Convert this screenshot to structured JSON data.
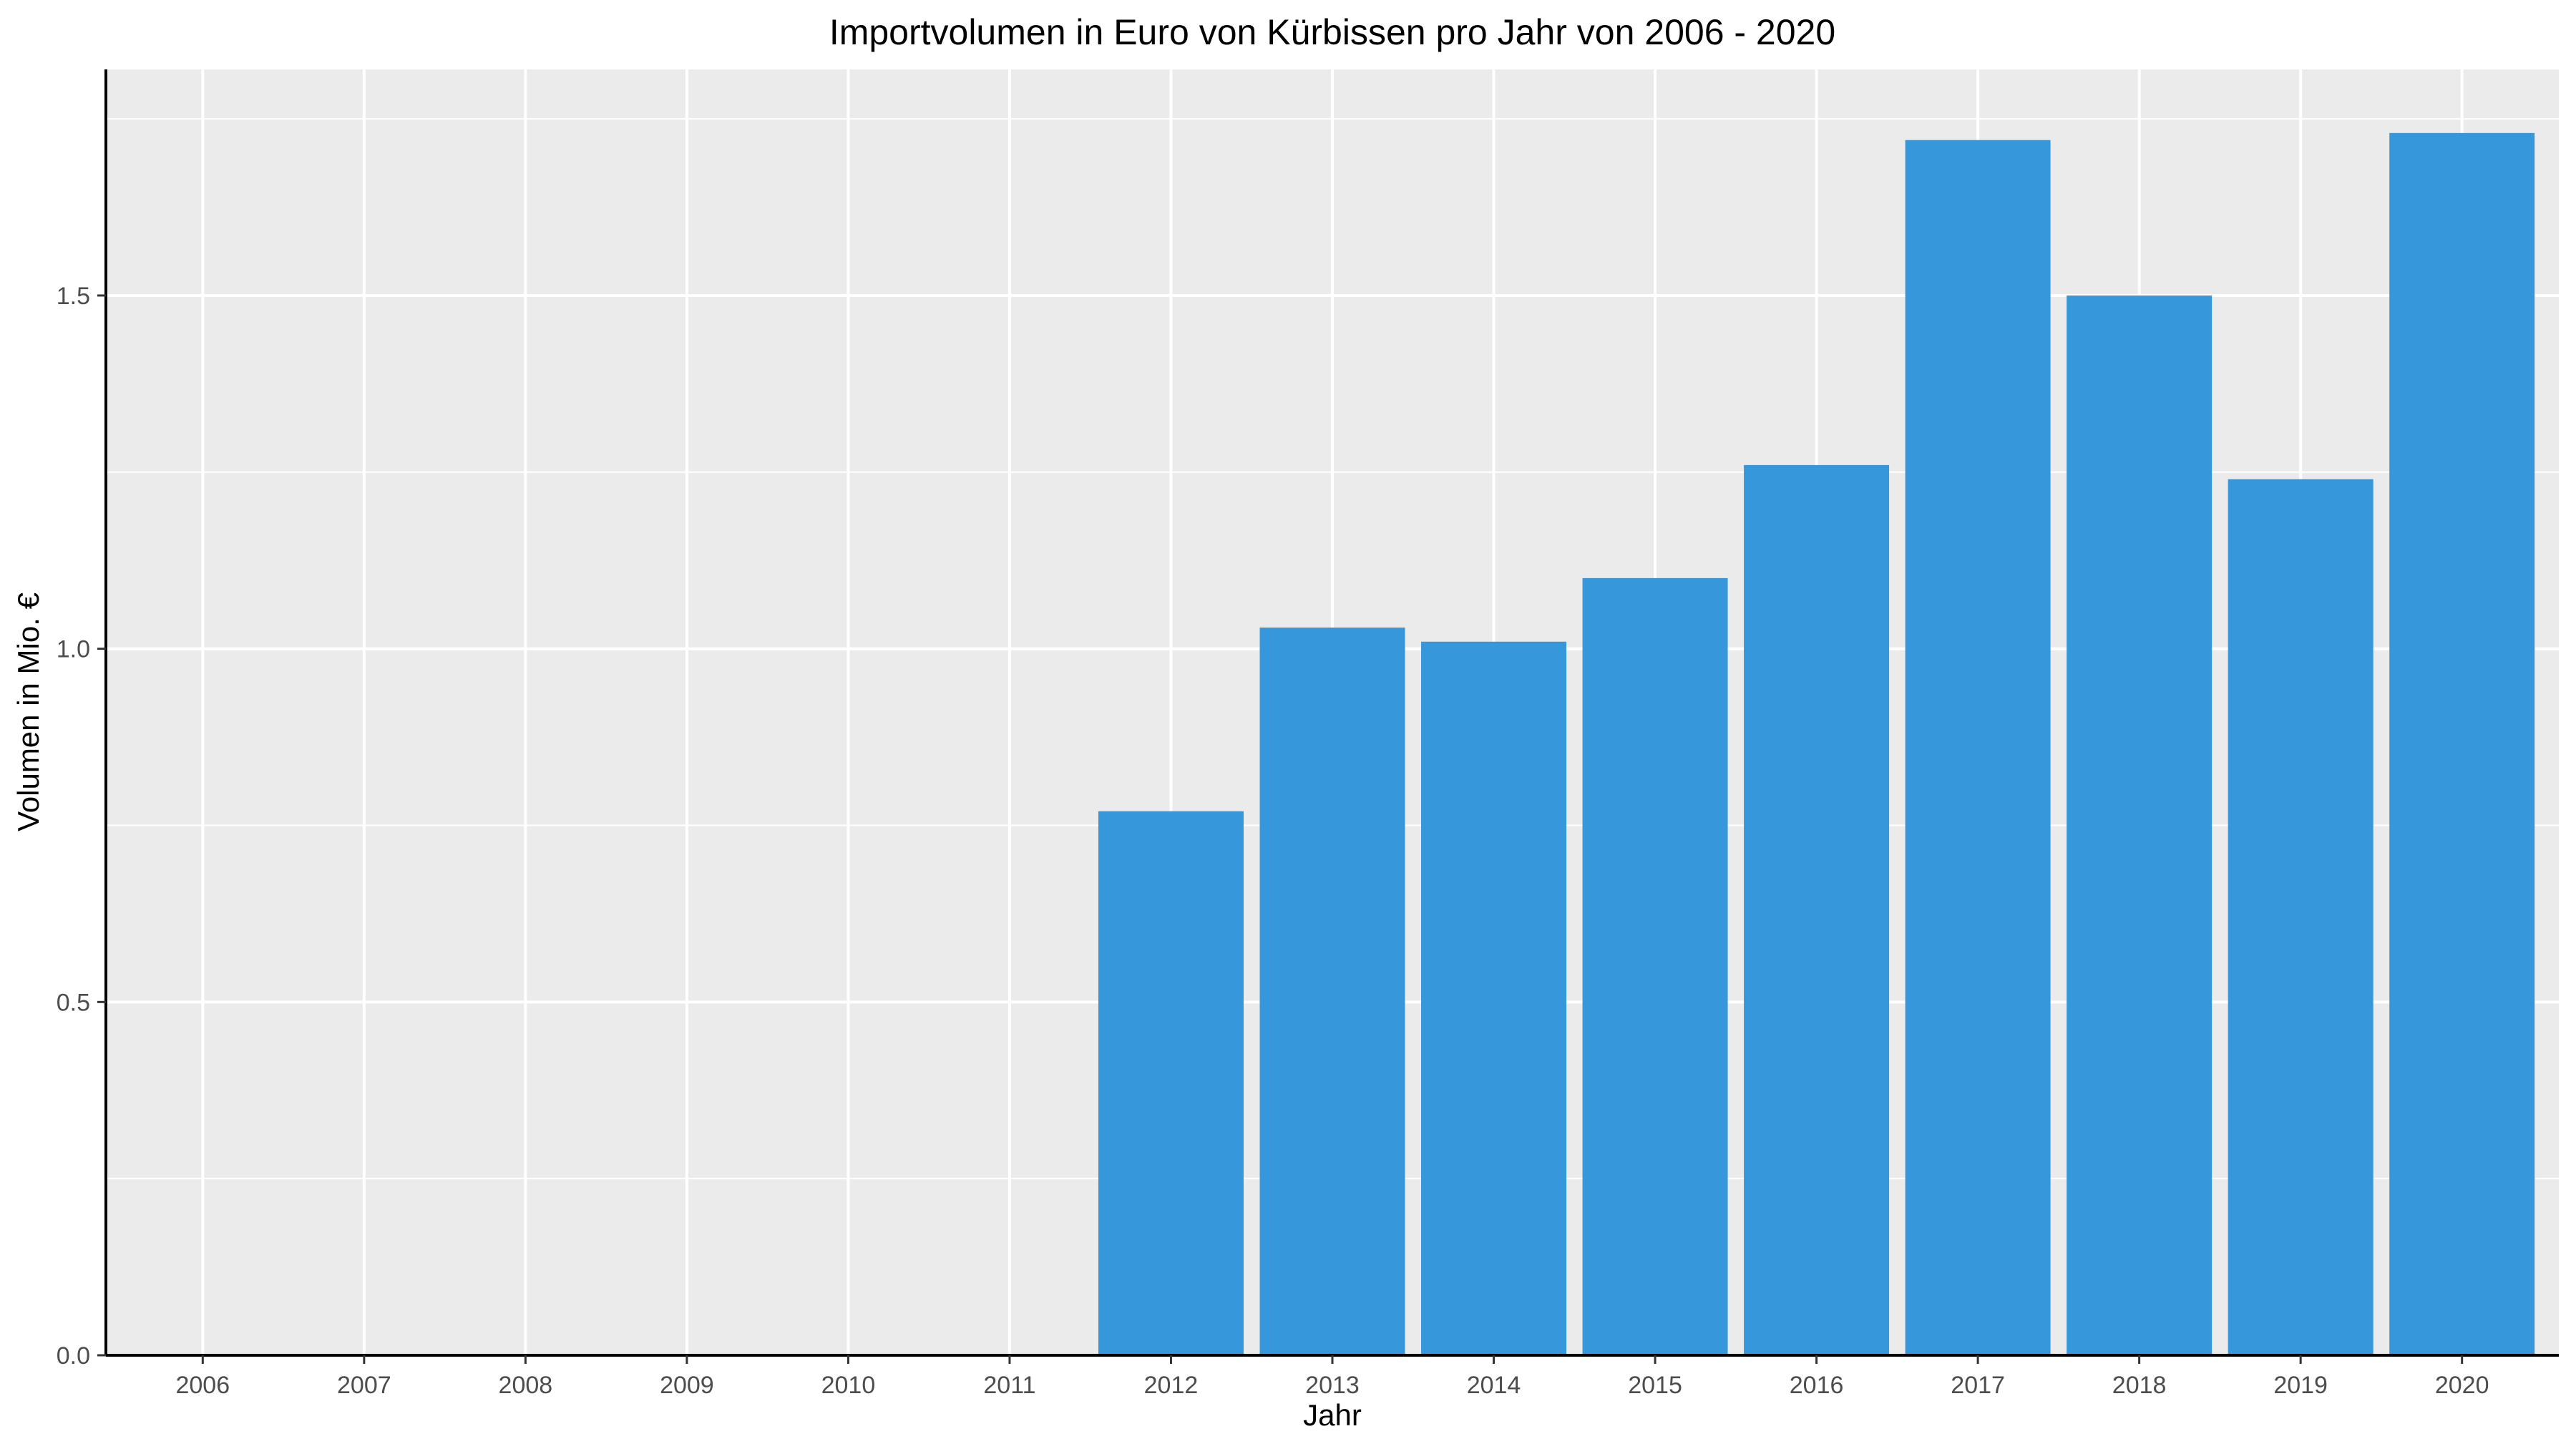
{
  "chart_data": {
    "type": "bar",
    "title": "Importvolumen in Euro von Kürbissen pro Jahr von 2006 - 2020",
    "xlabel": "Jahr",
    "ylabel": "Volumen in Mio. €",
    "categories": [
      "2006",
      "2007",
      "2008",
      "2009",
      "2010",
      "2011",
      "2012",
      "2013",
      "2014",
      "2015",
      "2016",
      "2017",
      "2018",
      "2019",
      "2020"
    ],
    "values": [
      0,
      0,
      0,
      0,
      0,
      0,
      0.77,
      1.03,
      1.01,
      1.1,
      1.26,
      1.72,
      1.5,
      1.24,
      1.73
    ],
    "ylim": [
      0,
      1.82
    ],
    "yticks": [
      0,
      0.5,
      1.0,
      1.5
    ],
    "ytick_labels": [
      "0.0",
      "0.5",
      "1.0",
      "1.5"
    ],
    "grid": true,
    "legend": "none",
    "colors": {
      "bar": "#3797db",
      "panel": "#ebebeb",
      "grid": "#ffffff",
      "axis": "#000000"
    }
  }
}
